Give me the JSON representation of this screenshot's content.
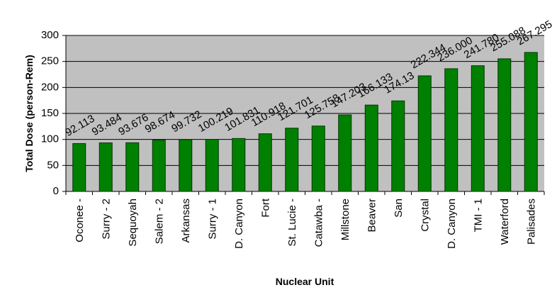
{
  "chart_data": {
    "type": "bar",
    "categories": [
      "Oconee -",
      "Surry - 2",
      "Sequoyah",
      "Salem - 2",
      "Arkansas",
      "Surry - 1",
      "D. Canyon",
      "Fort",
      "St. Lucie -",
      "Catawba -",
      "Millstone",
      "Beaver",
      "San",
      "Crystal",
      "D. Canyon",
      "TMI - 1",
      "Waterford",
      "Palisades"
    ],
    "values": [
      92.113,
      93.484,
      93.676,
      98.674,
      99.732,
      100.219,
      101.831,
      110.918,
      121.701,
      125.758,
      147.203,
      166.133,
      174.13,
      222.344,
      236.0,
      241.78,
      255.088,
      267.295
    ],
    "value_labels": [
      "92.113",
      "93.484",
      "93.676",
      "98.674",
      "99.732",
      "100.219",
      "101.831",
      "110.918",
      "121.701",
      "125.758",
      "147.203",
      "166.133",
      "174.13",
      "222.344",
      "236.000",
      "241.780",
      "255.088",
      "267.295"
    ],
    "color": "#008000",
    "x_label": "Nuclear Unit",
    "y_label": "Total Dose (person-Rem)",
    "ylim": [
      0,
      300
    ],
    "yticks": [
      0,
      50,
      100,
      150,
      200,
      250,
      300
    ],
    "grid": true
  }
}
